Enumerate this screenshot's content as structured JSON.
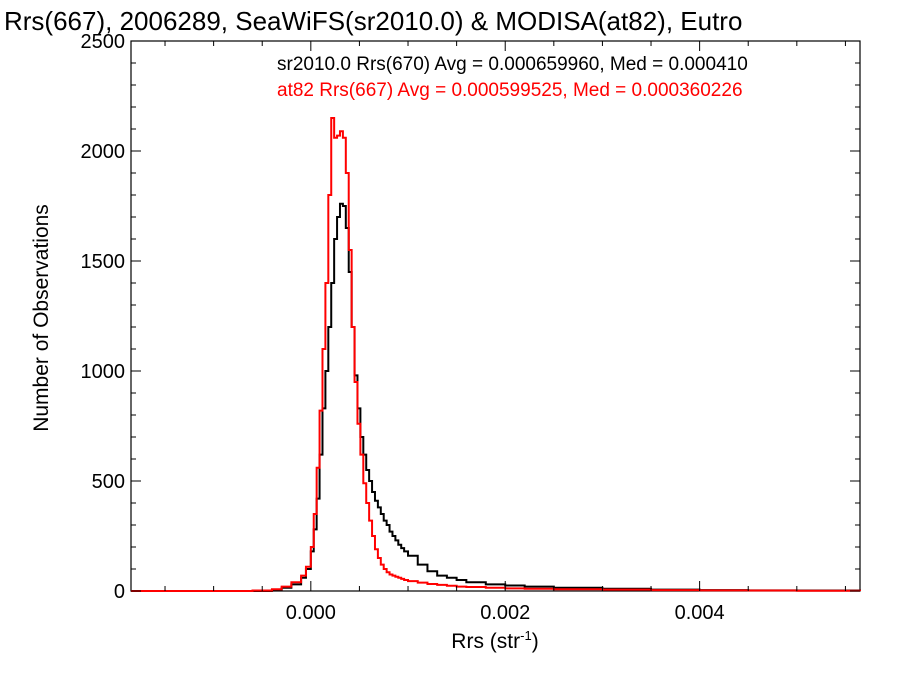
{
  "chart_data": {
    "type": "line",
    "title": "Rrs(667), 2006289, SeaWiFS(sr2010.0) & MODISA(at82), Eutro",
    "xlabel_base": "Rrs (str",
    "xlabel_sup": "-1",
    "xlabel_close": ")",
    "ylabel": "Number of Observations",
    "xlim": [
      -0.00185,
      0.00565
    ],
    "ylim": [
      0,
      2500
    ],
    "x_ticks": [
      {
        "value": 0.0,
        "label": "0.000"
      },
      {
        "value": 0.002,
        "label": "0.002"
      },
      {
        "value": 0.004,
        "label": "0.004"
      }
    ],
    "y_ticks": [
      {
        "value": 0,
        "label": "0"
      },
      {
        "value": 500,
        "label": "500"
      },
      {
        "value": 1000,
        "label": "1000"
      },
      {
        "value": 1500,
        "label": "1500"
      },
      {
        "value": 2000,
        "label": "2000"
      },
      {
        "value": 2500,
        "label": "2500"
      }
    ],
    "annotations": [
      {
        "text": "sr2010.0 Rrs(670) Avg = 0.000659960, Med = 0.000410",
        "color": "#000000"
      },
      {
        "text": "at82 Rrs(667) Avg = 0.000599525, Med = 0.000360226",
        "color": "#ff0000"
      }
    ],
    "series": [
      {
        "color": "#000000",
        "x": [
          -0.00185,
          -0.0012,
          -0.0006,
          -0.0004,
          -0.0003,
          -0.0002,
          -0.0001,
          -5e-05,
          0.0,
          3e-05,
          6e-05,
          9e-05,
          0.00012,
          0.00015,
          0.00018,
          0.00021,
          0.00024,
          0.00027,
          0.0003,
          0.00033,
          0.00036,
          0.00039,
          0.00042,
          0.00045,
          0.00048,
          0.00051,
          0.00054,
          0.00057,
          0.0006,
          0.00063,
          0.00066,
          0.00069,
          0.00072,
          0.00075,
          0.00078,
          0.00081,
          0.00084,
          0.00087,
          0.0009,
          0.00093,
          0.00096,
          0.001,
          0.0011,
          0.0012,
          0.0013,
          0.0014,
          0.0015,
          0.0016,
          0.0018,
          0.002,
          0.0022,
          0.0025,
          0.003,
          0.0035,
          0.004,
          0.0045,
          0.005,
          0.00565
        ],
        "y": [
          0,
          0,
          0,
          5,
          15,
          30,
          60,
          100,
          180,
          280,
          420,
          620,
          830,
          1000,
          1200,
          1400,
          1600,
          1700,
          1760,
          1750,
          1650,
          1450,
          1200,
          980,
          830,
          700,
          620,
          550,
          500,
          450,
          410,
          380,
          350,
          320,
          300,
          270,
          250,
          230,
          210,
          195,
          180,
          160,
          120,
          90,
          70,
          60,
          50,
          40,
          30,
          25,
          20,
          15,
          10,
          6,
          4,
          3,
          2,
          0
        ]
      },
      {
        "color": "#ff0000",
        "x": [
          -0.00185,
          -0.0012,
          -0.0006,
          -0.0004,
          -0.0003,
          -0.0002,
          -0.0001,
          -5e-05,
          0.0,
          3e-05,
          6e-05,
          9e-05,
          0.00012,
          0.00015,
          0.00018,
          0.00021,
          0.00024,
          0.00027,
          0.0003,
          0.00033,
          0.00036,
          0.00039,
          0.00042,
          0.00045,
          0.00048,
          0.00051,
          0.00054,
          0.00057,
          0.0006,
          0.00063,
          0.00066,
          0.00069,
          0.00072,
          0.00075,
          0.00078,
          0.00081,
          0.00084,
          0.00087,
          0.0009,
          0.00093,
          0.00096,
          0.001,
          0.0011,
          0.0012,
          0.0013,
          0.0014,
          0.0015,
          0.0016,
          0.0018,
          0.002,
          0.0022,
          0.0025,
          0.003,
          0.0035,
          0.004,
          0.0045,
          0.005,
          0.00565
        ],
        "y": [
          0,
          0,
          2,
          8,
          20,
          40,
          70,
          110,
          200,
          350,
          560,
          820,
          1100,
          1400,
          1800,
          2150,
          2060,
          2070,
          2090,
          2060,
          1900,
          1550,
          1200,
          950,
          760,
          620,
          490,
          400,
          320,
          250,
          190,
          150,
          120,
          100,
          85,
          75,
          70,
          65,
          60,
          55,
          50,
          45,
          38,
          32,
          28,
          24,
          20,
          18,
          15,
          12,
          10,
          8,
          6,
          4,
          3,
          2,
          1,
          0
        ]
      }
    ]
  }
}
